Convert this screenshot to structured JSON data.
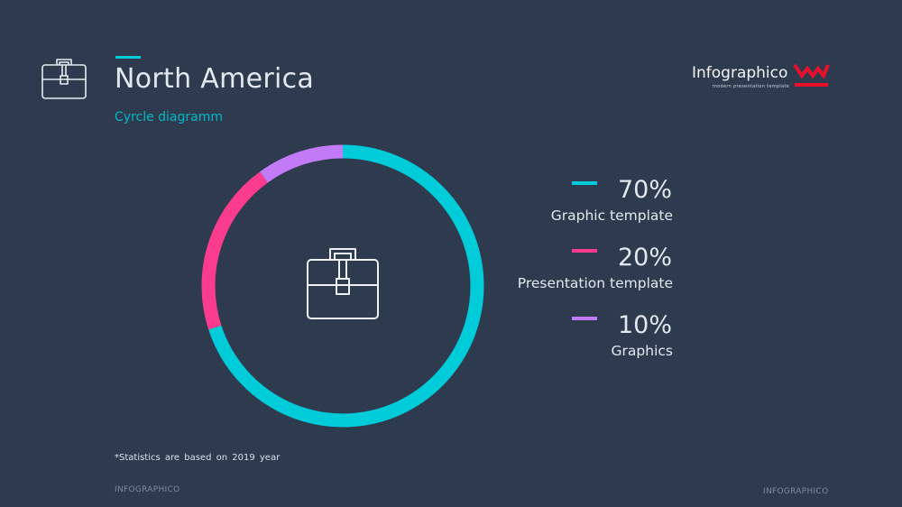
{
  "header": {
    "title": "North America",
    "subtitle": "Cyrcle diagramm",
    "icon": "briefcase-icon",
    "accent_color": "#00cbd8"
  },
  "logo": {
    "name": "Infographico",
    "tagline": "modern presentation template",
    "mark_color": "#e8102a"
  },
  "chart_data": {
    "type": "pie",
    "style": "donut",
    "center_icon": "briefcase-icon",
    "legend_placement": "right",
    "slices": [
      {
        "label": "Graphic template",
        "value": 70,
        "display": "70%",
        "color": "#00cbd8"
      },
      {
        "label": "Presentation template",
        "value": 20,
        "display": "20%",
        "color": "#fb3c8e"
      },
      {
        "label": "Graphics",
        "value": 10,
        "display": "10%",
        "color": "#c27af7"
      }
    ]
  },
  "footnote": "*Statistics are based on 2019 year",
  "footer": {
    "left": "INFOGRAPHICO",
    "right": "INFOGRAPHICO"
  }
}
